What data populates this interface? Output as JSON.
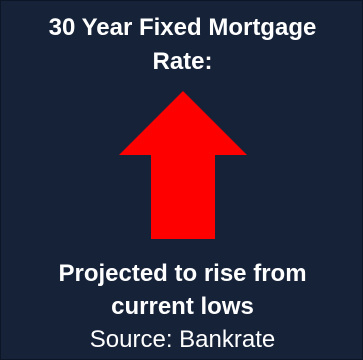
{
  "title": {
    "line1": "30 Year Fixed Mortgage",
    "line2": "Rate:"
  },
  "indicator": {
    "icon": "up-arrow-icon",
    "color": "#ff0000",
    "background": "#152238"
  },
  "projection": {
    "line1": "Projected to rise from",
    "line2": "current lows"
  },
  "source": "Source: Bankrate"
}
